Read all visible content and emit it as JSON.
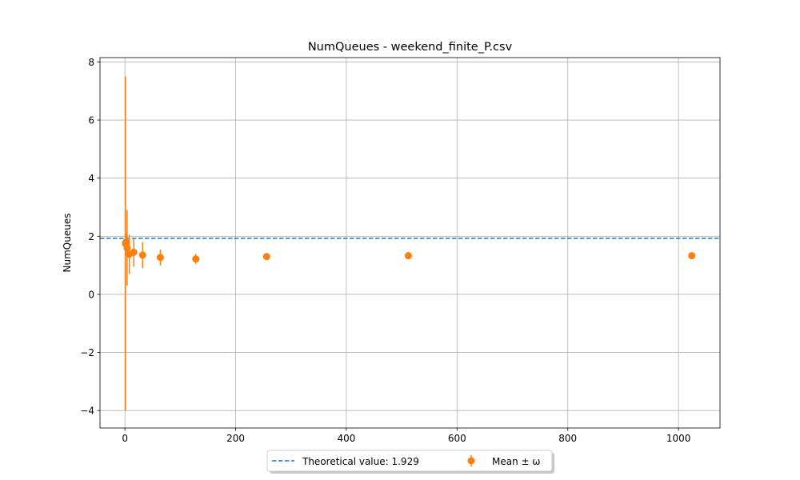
{
  "chart_data": {
    "type": "scatter",
    "title": "NumQueues - weekend_finite_P.csv",
    "xlabel": "",
    "ylabel": "NumQueues",
    "xlim": [
      -45,
      1075
    ],
    "ylim": [
      -4.6,
      8.15
    ],
    "xticks": [
      0,
      200,
      400,
      600,
      800,
      1000
    ],
    "yticks": [
      -4,
      -2,
      0,
      2,
      4,
      6,
      8
    ],
    "xtick_labels": [
      "0",
      "200",
      "400",
      "600",
      "800",
      "1000"
    ],
    "ytick_labels": [
      "−4",
      "−2",
      "0",
      "2",
      "4",
      "6",
      "8"
    ],
    "grid": true,
    "legend_position": "bottom-center",
    "theoretical": {
      "name": "Theoretical value: 1.929",
      "value": 1.929,
      "color": "#1f77b4",
      "style": "dashed"
    },
    "series": [
      {
        "name": "Mean ± ω",
        "color": "#ff7f0e",
        "x": [
          1,
          2,
          4,
          8,
          16,
          32,
          64,
          128,
          256,
          512,
          1024
        ],
        "y": [
          1.75,
          1.8,
          1.6,
          1.38,
          1.45,
          1.35,
          1.27,
          1.22,
          1.3,
          1.33,
          1.33
        ],
        "err": [
          5.75,
          0.3,
          1.3,
          0.68,
          0.5,
          0.45,
          0.27,
          0.17,
          0.07,
          0.04,
          0.03
        ]
      }
    ]
  }
}
